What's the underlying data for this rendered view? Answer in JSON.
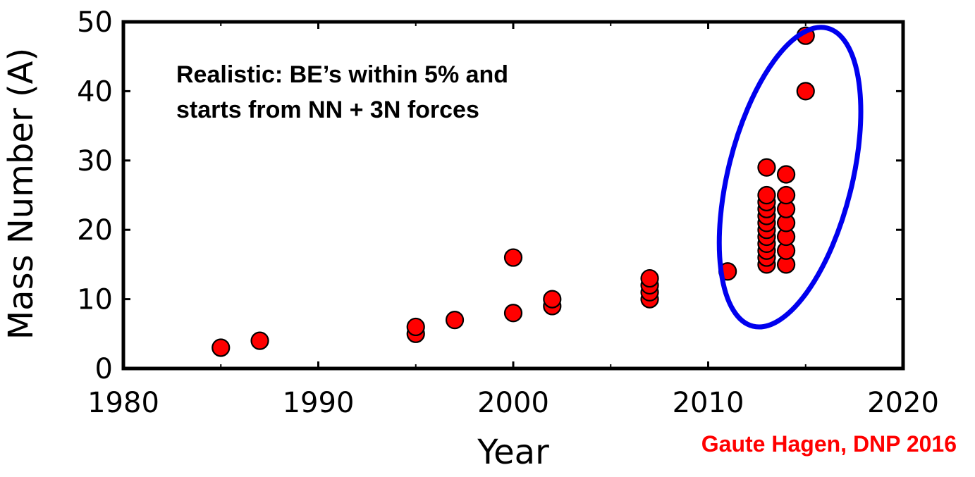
{
  "chart_data": {
    "type": "scatter",
    "title": "",
    "xlabel": "Year",
    "ylabel": "Mass Number (A)",
    "xlim": [
      1980,
      2020
    ],
    "ylim": [
      0,
      50
    ],
    "xticks": [
      1980,
      1990,
      2000,
      2010,
      2020
    ],
    "yticks": [
      0,
      10,
      20,
      30,
      40,
      50
    ],
    "grid": false,
    "marker_color": "#ff0000",
    "marker_edge_color": "#000000",
    "series": [
      {
        "points": [
          {
            "x": 1985,
            "y": 3
          },
          {
            "x": 1987,
            "y": 4
          },
          {
            "x": 1995,
            "y": 5
          },
          {
            "x": 1995,
            "y": 6
          },
          {
            "x": 1997,
            "y": 7
          },
          {
            "x": 2000,
            "y": 8
          },
          {
            "x": 2000,
            "y": 16
          },
          {
            "x": 2002,
            "y": 9
          },
          {
            "x": 2002,
            "y": 10
          },
          {
            "x": 2007,
            "y": 10
          },
          {
            "x": 2007,
            "y": 11
          },
          {
            "x": 2007,
            "y": 12
          },
          {
            "x": 2007,
            "y": 13
          },
          {
            "x": 2011,
            "y": 14
          },
          {
            "x": 2013,
            "y": 15
          },
          {
            "x": 2013,
            "y": 16
          },
          {
            "x": 2013,
            "y": 17
          },
          {
            "x": 2013,
            "y": 18
          },
          {
            "x": 2013,
            "y": 19
          },
          {
            "x": 2013,
            "y": 20
          },
          {
            "x": 2013,
            "y": 21
          },
          {
            "x": 2013,
            "y": 22
          },
          {
            "x": 2013,
            "y": 23
          },
          {
            "x": 2013,
            "y": 24
          },
          {
            "x": 2013,
            "y": 25
          },
          {
            "x": 2013,
            "y": 29
          },
          {
            "x": 2014,
            "y": 15
          },
          {
            "x": 2014,
            "y": 17
          },
          {
            "x": 2014,
            "y": 19
          },
          {
            "x": 2014,
            "y": 21
          },
          {
            "x": 2014,
            "y": 23
          },
          {
            "x": 2014,
            "y": 25
          },
          {
            "x": 2014,
            "y": 28
          },
          {
            "x": 2015,
            "y": 40
          },
          {
            "x": 2015,
            "y": 48
          }
        ]
      }
    ],
    "annotations": {
      "line1": "Realistic: BE’s within 5% and",
      "line2": "starts from NN + 3N forces"
    },
    "highlight_ellipse_color": "#0000ee"
  },
  "credit": {
    "text": "Gaute Hagen, DNP 2016",
    "color": "#ff0000"
  }
}
